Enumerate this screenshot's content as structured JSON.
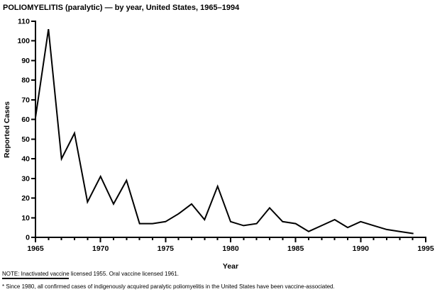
{
  "figure": {
    "title": "POLIOMYELITIS (paralytic) — by year, United States, 1965–1994",
    "note": "NOTE: Inactivated vaccine licensed 1955. Oral vaccine licensed 1961.",
    "footnote": "* Since 1980, all confirmed cases of indigenously acquired paralytic poliomyelitis in the United States have been vaccine-associated."
  },
  "chart_data": {
    "type": "line",
    "title": "POLIOMYELITIS (paralytic) — by year, United States, 1965–1994",
    "xlabel": "Year",
    "ylabel": "Reported Cases",
    "xlim": [
      1965,
      1995
    ],
    "ylim": [
      0,
      110
    ],
    "y_tick_interval": 10,
    "y_tick_labels": [
      0,
      10,
      20,
      30,
      40,
      50,
      60,
      70,
      80,
      90,
      100,
      110
    ],
    "x_major_ticks": [
      1965,
      1970,
      1975,
      1980,
      1985,
      1990,
      1995
    ],
    "x_minor_tick_interval": 1,
    "grid": false,
    "legend": false,
    "line_color": "#000000",
    "x": [
      1965,
      1966,
      1967,
      1968,
      1969,
      1970,
      1971,
      1972,
      1973,
      1974,
      1975,
      1976,
      1977,
      1978,
      1979,
      1980,
      1981,
      1982,
      1983,
      1984,
      1985,
      1986,
      1987,
      1988,
      1989,
      1990,
      1991,
      1992,
      1993,
      1994
    ],
    "values": [
      61,
      106,
      40,
      53,
      18,
      31,
      17,
      29,
      7,
      7,
      8,
      12,
      17,
      9,
      26,
      8,
      6,
      7,
      15,
      8,
      7,
      3,
      6,
      9,
      5,
      8,
      6,
      4,
      3,
      2
    ]
  }
}
